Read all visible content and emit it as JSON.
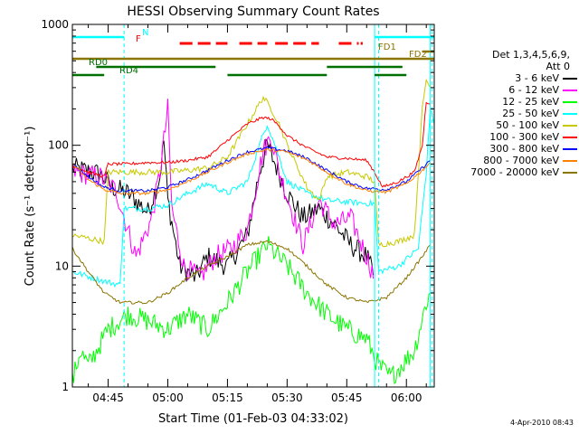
{
  "chart_data": {
    "type": "line",
    "title": "HESSI Observing Summary Count Rates",
    "xlabel": "Start Time (01-Feb-03 04:33:02)",
    "ylabel": "Count Rate (s⁻¹ detector⁻¹)",
    "y_scale": "log",
    "ylim": [
      1,
      1000
    ],
    "xlim": [
      "04:36",
      "06:07"
    ],
    "x_ticks": [
      "04:45",
      "05:00",
      "05:15",
      "05:30",
      "05:45",
      "06:00"
    ],
    "y_ticks": [
      "1",
      "10",
      "100",
      "1000"
    ],
    "legend": {
      "header": [
        "Det 1,3,4,5,6,9,",
        "Att 0"
      ],
      "placement": "right",
      "entries": [
        {
          "label": "3 - 6 keV",
          "color": "#000000"
        },
        {
          "label": "6 - 12 keV",
          "color": "#ff00ff"
        },
        {
          "label": "12 - 25 keV",
          "color": "#00ff00"
        },
        {
          "label": "25 - 50 keV",
          "color": "#00ffff"
        },
        {
          "label": "50 - 100 keV",
          "color": "#c8c800"
        },
        {
          "label": "100 - 300 keV",
          "color": "#ff0000"
        },
        {
          "label": "300 - 800 keV",
          "color": "#0000ff"
        },
        {
          "label": "800 - 7000 keV",
          "color": "#ff8000"
        },
        {
          "label": "7000 - 20000 keV",
          "color": "#8b7500"
        }
      ]
    },
    "flag_bars": [
      {
        "label": "N",
        "color": "#00ffff",
        "segments": [
          [
            "04:36",
            "04:49"
          ],
          [
            "05:52",
            "06:07"
          ]
        ]
      },
      {
        "label": "F",
        "color": "#ff0000",
        "segments": [
          [
            "05:03",
            "05:15"
          ],
          [
            "05:18",
            "05:25"
          ],
          [
            "05:27",
            "05:38"
          ],
          [
            "05:43",
            "05:48"
          ],
          [
            "05:48.5",
            "05:49"
          ]
        ]
      },
      {
        "label": "FD1",
        "color": "#8b7500",
        "segments": [
          [
            "06:04",
            "06:07"
          ]
        ]
      },
      {
        "label": "FD2",
        "color": "#8b7500",
        "segments": [
          [
            "04:36",
            "06:07"
          ]
        ]
      },
      {
        "label": "RD0",
        "color": "#007000",
        "segments": [
          [
            "04:42",
            "05:12"
          ],
          [
            "05:40",
            "05:59"
          ]
        ]
      },
      {
        "label": "RD4",
        "color": "#007000",
        "segments": [
          [
            "04:36",
            "04:44"
          ],
          [
            "05:15",
            "05:40"
          ],
          [
            "05:52",
            "06:00"
          ]
        ]
      }
    ],
    "vlines": [
      {
        "x": "04:49",
        "style": "dashed",
        "color": "#00ffff"
      },
      {
        "x": "05:52",
        "style": "solid",
        "color": "#00ffff"
      },
      {
        "x": "05:53",
        "style": "dashed",
        "color": "#00ffff"
      },
      {
        "x": "06:06",
        "style": "solid",
        "color": "#00ffff"
      },
      {
        "x": "06:06.5",
        "style": "dashed",
        "color": "#00ffff"
      }
    ],
    "series": [
      {
        "name": "3 - 6 keV",
        "color": "#000000",
        "points": [
          [
            "04:36",
            65
          ],
          [
            "04:43",
            58
          ],
          [
            "04:46",
            45
          ],
          [
            "04:50",
            40
          ],
          [
            "04:55",
            28
          ],
          [
            "04:58",
            55
          ],
          [
            "04:59",
            110
          ],
          [
            "05:00",
            35
          ],
          [
            "05:03",
            10
          ],
          [
            "05:07",
            8
          ],
          [
            "05:10",
            12
          ],
          [
            "05:15",
            10
          ],
          [
            "05:20",
            18
          ],
          [
            "05:23",
            60
          ],
          [
            "05:25",
            100
          ],
          [
            "05:27",
            70
          ],
          [
            "05:30",
            40
          ],
          [
            "05:34",
            25
          ],
          [
            "05:38",
            30
          ],
          [
            "05:42",
            22
          ],
          [
            "05:46",
            15
          ],
          [
            "05:50",
            12
          ],
          [
            "05:52",
            8
          ],
          [
            "05:53",
            null
          ]
        ]
      },
      {
        "name": "6 - 12 keV",
        "color": "#ff00ff",
        "points": [
          [
            "04:36",
            60
          ],
          [
            "04:43",
            55
          ],
          [
            "04:47",
            42
          ],
          [
            "04:52",
            12
          ],
          [
            "04:56",
            25
          ],
          [
            "04:58",
            60
          ],
          [
            "05:00",
            200
          ],
          [
            "05:01",
            30
          ],
          [
            "05:04",
            10
          ],
          [
            "05:08",
            8
          ],
          [
            "05:12",
            12
          ],
          [
            "05:16",
            14
          ],
          [
            "05:20",
            20
          ],
          [
            "05:24",
            90
          ],
          [
            "05:26",
            120
          ],
          [
            "05:28",
            60
          ],
          [
            "05:31",
            30
          ],
          [
            "05:34",
            15
          ],
          [
            "05:38",
            35
          ],
          [
            "05:42",
            22
          ],
          [
            "05:46",
            25
          ],
          [
            "05:50",
            12
          ],
          [
            "05:52",
            8
          ],
          [
            "05:53",
            null
          ]
        ]
      },
      {
        "name": "12 - 25 keV",
        "color": "#00ff00",
        "points": [
          [
            "04:36",
            1.1
          ],
          [
            "04:38",
            2
          ],
          [
            "04:40",
            1.5
          ],
          [
            "04:45",
            3
          ],
          [
            "04:50",
            4
          ],
          [
            "04:55",
            3.5
          ],
          [
            "05:00",
            3
          ],
          [
            "05:05",
            4
          ],
          [
            "05:10",
            3
          ],
          [
            "05:15",
            5
          ],
          [
            "05:20",
            9
          ],
          [
            "05:25",
            15
          ],
          [
            "05:30",
            10
          ],
          [
            "05:35",
            6
          ],
          [
            "05:40",
            4
          ],
          [
            "05:45",
            3
          ],
          [
            "05:50",
            2.5
          ],
          [
            "05:53",
            1.5
          ],
          [
            "05:56",
            1.2
          ],
          [
            "06:02",
            2
          ],
          [
            "06:05",
            5
          ],
          [
            "06:06",
            6
          ]
        ]
      },
      {
        "name": "25 - 50 keV",
        "color": "#00ffff",
        "points": [
          [
            "04:36",
            9
          ],
          [
            "04:44",
            7.5
          ],
          [
            "04:48",
            7
          ],
          [
            "04:49",
            30
          ],
          [
            "04:55",
            30
          ],
          [
            "05:00",
            32
          ],
          [
            "05:05",
            40
          ],
          [
            "05:10",
            48
          ],
          [
            "05:12",
            45
          ],
          [
            "05:15",
            40
          ],
          [
            "05:20",
            50
          ],
          [
            "05:23",
            100
          ],
          [
            "05:25",
            150
          ],
          [
            "05:27",
            100
          ],
          [
            "05:30",
            50
          ],
          [
            "05:35",
            40
          ],
          [
            "05:40",
            35
          ],
          [
            "05:45",
            34
          ],
          [
            "05:50",
            33
          ],
          [
            "05:52",
            33
          ],
          [
            "05:53",
            9
          ],
          [
            "05:58",
            10
          ],
          [
            "06:03",
            14
          ],
          [
            "06:05",
            60
          ],
          [
            "06:06",
            200
          ],
          [
            "06:07",
            150
          ]
        ]
      },
      {
        "name": "50 - 100 keV",
        "color": "#c8c800",
        "points": [
          [
            "04:36",
            18
          ],
          [
            "04:40",
            17
          ],
          [
            "04:44",
            16
          ],
          [
            "04:45",
            60
          ],
          [
            "04:50",
            60
          ],
          [
            "04:55",
            60
          ],
          [
            "05:00",
            60
          ],
          [
            "05:05",
            62
          ],
          [
            "05:10",
            65
          ],
          [
            "05:12",
            70
          ],
          [
            "05:15",
            80
          ],
          [
            "05:20",
            150
          ],
          [
            "05:24",
            250
          ],
          [
            "05:26",
            200
          ],
          [
            "05:28",
            150
          ],
          [
            "05:30",
            100
          ],
          [
            "05:35",
            45
          ],
          [
            "05:38",
            35
          ],
          [
            "05:40",
            55
          ],
          [
            "05:45",
            60
          ],
          [
            "05:50",
            55
          ],
          [
            "05:52",
            50
          ],
          [
            "05:53",
            15
          ],
          [
            "05:58",
            16
          ],
          [
            "06:02",
            18
          ],
          [
            "06:04",
            200
          ],
          [
            "06:05",
            350
          ],
          [
            "06:06",
            300
          ]
        ]
      },
      {
        "name": "100 - 300 keV",
        "color": "#ff0000",
        "points": [
          [
            "04:36",
            68
          ],
          [
            "04:40",
            60
          ],
          [
            "04:44",
            55
          ],
          [
            "04:45",
            70
          ],
          [
            "04:50",
            70
          ],
          [
            "04:55",
            72
          ],
          [
            "05:00",
            72
          ],
          [
            "05:05",
            75
          ],
          [
            "05:10",
            80
          ],
          [
            "05:12",
            90
          ],
          [
            "05:15",
            110
          ],
          [
            "05:20",
            150
          ],
          [
            "05:24",
            170
          ],
          [
            "05:26",
            165
          ],
          [
            "05:28",
            145
          ],
          [
            "05:30",
            120
          ],
          [
            "05:35",
            95
          ],
          [
            "05:40",
            80
          ],
          [
            "05:45",
            78
          ],
          [
            "05:50",
            75
          ],
          [
            "05:52",
            60
          ],
          [
            "05:54",
            45
          ],
          [
            "05:58",
            50
          ],
          [
            "06:02",
            60
          ],
          [
            "06:04",
            100
          ],
          [
            "06:05",
            230
          ],
          [
            "06:06",
            220
          ]
        ]
      },
      {
        "name": "300 - 800 keV",
        "color": "#0000ff",
        "points": [
          [
            "04:36",
            70
          ],
          [
            "04:40",
            55
          ],
          [
            "04:44",
            45
          ],
          [
            "04:48",
            42
          ],
          [
            "04:55",
            42
          ],
          [
            "05:00",
            45
          ],
          [
            "05:05",
            52
          ],
          [
            "05:10",
            62
          ],
          [
            "05:15",
            75
          ],
          [
            "05:20",
            88
          ],
          [
            "05:25",
            95
          ],
          [
            "05:30",
            90
          ],
          [
            "05:35",
            78
          ],
          [
            "05:40",
            62
          ],
          [
            "05:45",
            50
          ],
          [
            "05:50",
            44
          ],
          [
            "05:55",
            43
          ],
          [
            "06:00",
            50
          ],
          [
            "06:04",
            65
          ],
          [
            "06:06",
            75
          ]
        ]
      },
      {
        "name": "800 - 7000 keV",
        "color": "#ff8000",
        "points": [
          [
            "04:36",
            70
          ],
          [
            "04:40",
            52
          ],
          [
            "04:44",
            43
          ],
          [
            "04:48",
            40
          ],
          [
            "04:55",
            40
          ],
          [
            "05:00",
            43
          ],
          [
            "05:05",
            50
          ],
          [
            "05:10",
            60
          ],
          [
            "05:15",
            72
          ],
          [
            "05:20",
            85
          ],
          [
            "05:25",
            92
          ],
          [
            "05:30",
            88
          ],
          [
            "05:35",
            76
          ],
          [
            "05:40",
            60
          ],
          [
            "05:45",
            48
          ],
          [
            "05:50",
            42
          ],
          [
            "05:55",
            41
          ],
          [
            "06:00",
            48
          ],
          [
            "06:04",
            62
          ],
          [
            "06:06",
            72
          ]
        ]
      },
      {
        "name": "7000 - 20000 keV",
        "color": "#8b7500",
        "points": [
          [
            "04:36",
            14
          ],
          [
            "04:40",
            9
          ],
          [
            "04:44",
            6
          ],
          [
            "04:48",
            5
          ],
          [
            "04:55",
            5
          ],
          [
            "05:00",
            6
          ],
          [
            "05:05",
            8
          ],
          [
            "05:10",
            10
          ],
          [
            "05:15",
            12
          ],
          [
            "05:20",
            15
          ],
          [
            "05:25",
            16
          ],
          [
            "05:30",
            14
          ],
          [
            "05:35",
            10
          ],
          [
            "05:40",
            7
          ],
          [
            "05:45",
            5.5
          ],
          [
            "05:50",
            5
          ],
          [
            "05:55",
            5.5
          ],
          [
            "06:00",
            8
          ],
          [
            "06:04",
            12
          ],
          [
            "06:06",
            15
          ]
        ]
      }
    ]
  },
  "timestamp": "4-Apr-2010 08:43"
}
